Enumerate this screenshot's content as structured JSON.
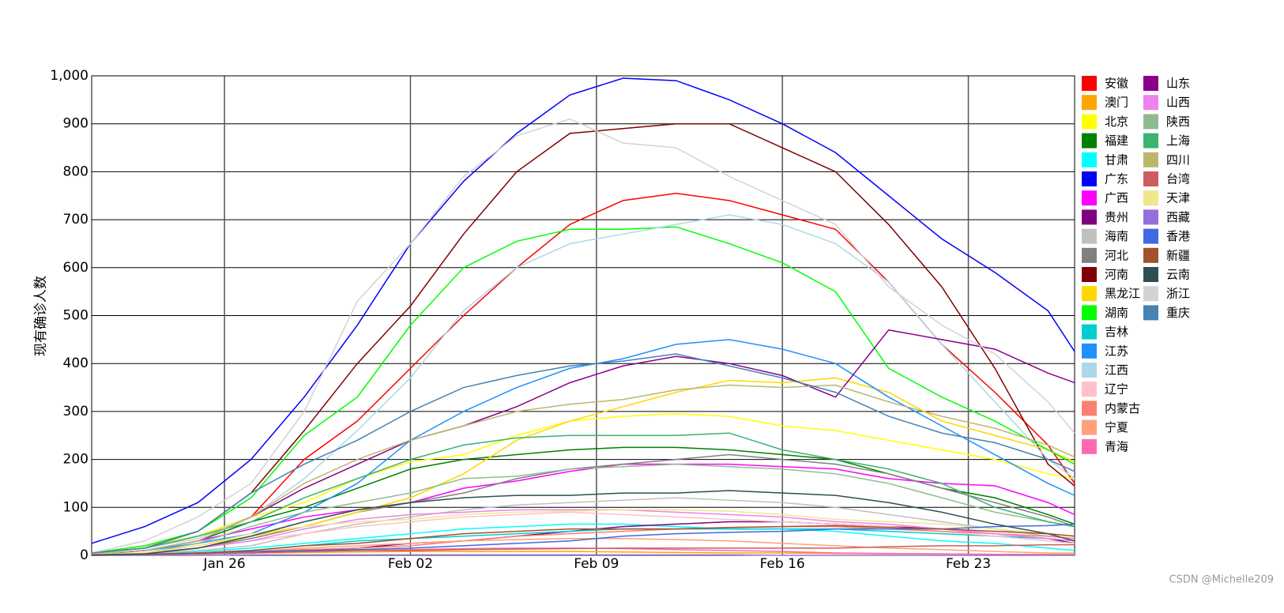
{
  "chart_data": {
    "type": "line",
    "ylabel": "现有确诊人数",
    "watermark": "CSDN @Michelle209",
    "x": [
      0,
      2,
      4,
      6,
      8,
      10,
      12,
      14,
      16,
      18,
      20,
      22,
      24,
      26,
      28,
      30,
      32,
      34,
      36,
      37
    ],
    "xlim": [
      0,
      37
    ],
    "xticks": [
      {
        "value": 5,
        "label": "Jan 26"
      },
      {
        "value": 12,
        "label": "Feb 02"
      },
      {
        "value": 19,
        "label": "Feb 09"
      },
      {
        "value": 26,
        "label": "Feb 16"
      },
      {
        "value": 33,
        "label": "Feb 23"
      }
    ],
    "ylim": [
      0,
      1000
    ],
    "yticks": [
      0,
      100,
      200,
      300,
      400,
      500,
      600,
      700,
      800,
      900,
      {
        "value": 1000,
        "label": "1,000"
      }
    ],
    "grid": true,
    "series": [
      {
        "name": "安徽",
        "color": "#ff0000",
        "values": [
          5,
          15,
          40,
          80,
          200,
          280,
          390,
          500,
          600,
          690,
          740,
          755,
          740,
          710,
          680,
          570,
          440,
          340,
          230,
          150
        ]
      },
      {
        "name": "澳门",
        "color": "#ffa500",
        "values": [
          1,
          2,
          4,
          5,
          6,
          7,
          8,
          8,
          8,
          8,
          7,
          6,
          5,
          5,
          4,
          3,
          3,
          2,
          2,
          2
        ]
      },
      {
        "name": "北京",
        "color": "#ffff00",
        "values": [
          5,
          20,
          40,
          80,
          110,
          160,
          195,
          210,
          250,
          280,
          290,
          295,
          290,
          270,
          260,
          240,
          220,
          200,
          170,
          160
        ]
      },
      {
        "name": "福建",
        "color": "#008000",
        "values": [
          2,
          10,
          30,
          70,
          100,
          140,
          180,
          200,
          210,
          220,
          225,
          225,
          220,
          210,
          200,
          170,
          140,
          120,
          85,
          65
        ]
      },
      {
        "name": "甘肃",
        "color": "#00ffff",
        "values": [
          0,
          2,
          8,
          15,
          25,
          35,
          45,
          55,
          60,
          65,
          65,
          60,
          55,
          55,
          50,
          40,
          30,
          25,
          15,
          10
        ]
      },
      {
        "name": "广东",
        "color": "#0000ff",
        "values": [
          25,
          60,
          110,
          200,
          330,
          480,
          650,
          780,
          880,
          960,
          995,
          990,
          950,
          900,
          840,
          750,
          660,
          590,
          510,
          425
        ]
      },
      {
        "name": "广西",
        "color": "#ff00ff",
        "values": [
          2,
          10,
          30,
          55,
          80,
          95,
          110,
          140,
          155,
          175,
          190,
          190,
          190,
          185,
          180,
          160,
          150,
          145,
          110,
          85
        ]
      },
      {
        "name": "贵州",
        "color": "#800080",
        "values": [
          0,
          1,
          3,
          5,
          10,
          15,
          25,
          30,
          40,
          50,
          60,
          65,
          70,
          70,
          65,
          60,
          55,
          45,
          35,
          25
        ]
      },
      {
        "name": "海南",
        "color": "#c0c0c0",
        "values": [
          1,
          4,
          10,
          20,
          45,
          65,
          80,
          95,
          105,
          110,
          115,
          120,
          115,
          110,
          100,
          85,
          70,
          55,
          40,
          35
        ]
      },
      {
        "name": "河北",
        "color": "#808080",
        "values": [
          1,
          5,
          15,
          35,
          60,
          90,
          110,
          130,
          160,
          180,
          190,
          200,
          210,
          200,
          190,
          170,
          140,
          110,
          80,
          60
        ]
      },
      {
        "name": "河南",
        "color": "#800000",
        "values": [
          5,
          15,
          50,
          130,
          260,
          400,
          520,
          670,
          800,
          880,
          890,
          900,
          900,
          850,
          800,
          690,
          560,
          390,
          190,
          145
        ]
      },
      {
        "name": "黑龙江",
        "color": "#ffd700",
        "values": [
          1,
          5,
          20,
          40,
          60,
          90,
          120,
          170,
          240,
          280,
          310,
          340,
          365,
          360,
          370,
          340,
          280,
          250,
          220,
          195
        ]
      },
      {
        "name": "湖南",
        "color": "#00ff00",
        "values": [
          5,
          20,
          50,
          120,
          250,
          330,
          480,
          600,
          655,
          680,
          680,
          685,
          650,
          610,
          550,
          390,
          330,
          280,
          220,
          190
        ]
      },
      {
        "name": "吉林",
        "color": "#00ced1",
        "values": [
          0,
          2,
          5,
          10,
          20,
          30,
          35,
          40,
          45,
          50,
          55,
          55,
          55,
          55,
          55,
          50,
          45,
          40,
          35,
          30
        ]
      },
      {
        "name": "江苏",
        "color": "#1e90ff",
        "values": [
          3,
          10,
          25,
          45,
          90,
          150,
          240,
          300,
          350,
          390,
          410,
          440,
          450,
          430,
          400,
          330,
          270,
          210,
          150,
          125
        ]
      },
      {
        "name": "江西",
        "color": "#add8e6",
        "values": [
          5,
          15,
          35,
          80,
          160,
          260,
          370,
          510,
          600,
          650,
          670,
          690,
          710,
          690,
          650,
          570,
          440,
          320,
          200,
          160
        ]
      },
      {
        "name": "辽宁",
        "color": "#ffc0cb",
        "values": [
          1,
          5,
          15,
          30,
          45,
          60,
          70,
          80,
          85,
          90,
          85,
          80,
          75,
          70,
          65,
          60,
          50,
          40,
          30,
          25
        ]
      },
      {
        "name": "内蒙古",
        "color": "#fa8072",
        "values": [
          0,
          1,
          4,
          8,
          12,
          15,
          20,
          30,
          40,
          45,
          50,
          55,
          58,
          60,
          60,
          55,
          50,
          45,
          40,
          35
        ]
      },
      {
        "name": "宁夏",
        "color": "#ffa07a",
        "values": [
          0,
          1,
          4,
          8,
          15,
          20,
          25,
          30,
          33,
          35,
          35,
          33,
          30,
          25,
          20,
          15,
          12,
          8,
          5,
          5
        ]
      },
      {
        "name": "青海",
        "color": "#ff69b4",
        "values": [
          0,
          1,
          3,
          5,
          8,
          10,
          12,
          14,
          15,
          15,
          14,
          12,
          10,
          8,
          5,
          4,
          3,
          2,
          1,
          1
        ]
      },
      {
        "name": "山东",
        "color": "#8b008b",
        "values": [
          2,
          10,
          30,
          80,
          140,
          190,
          240,
          270,
          310,
          360,
          395,
          415,
          400,
          375,
          330,
          470,
          450,
          430,
          380,
          360
        ]
      },
      {
        "name": "山西",
        "color": "#ee82ee",
        "values": [
          1,
          5,
          15,
          30,
          55,
          75,
          85,
          90,
          95,
          95,
          95,
          90,
          85,
          80,
          70,
          65,
          55,
          45,
          35,
          30
        ]
      },
      {
        "name": "陕西",
        "color": "#8fbc8f",
        "values": [
          1,
          5,
          25,
          60,
          90,
          110,
          130,
          160,
          165,
          180,
          185,
          190,
          185,
          180,
          170,
          150,
          120,
          90,
          70,
          60
        ]
      },
      {
        "name": "上海",
        "color": "#3cb371",
        "values": [
          5,
          15,
          40,
          70,
          120,
          160,
          200,
          230,
          245,
          250,
          250,
          250,
          255,
          220,
          200,
          180,
          150,
          100,
          70,
          60
        ]
      },
      {
        "name": "四川",
        "color": "#bdb76b",
        "values": [
          3,
          10,
          30,
          80,
          150,
          200,
          240,
          270,
          300,
          315,
          325,
          345,
          355,
          350,
          355,
          320,
          290,
          265,
          230,
          205
        ]
      },
      {
        "name": "台湾",
        "color": "#cd5c5c",
        "values": [
          1,
          2,
          3,
          5,
          8,
          10,
          10,
          12,
          13,
          14,
          15,
          15,
          15,
          15,
          15,
          18,
          20,
          20,
          22,
          22
        ]
      },
      {
        "name": "天津",
        "color": "#f0e68c",
        "values": [
          2,
          5,
          20,
          45,
          60,
          70,
          75,
          85,
          90,
          92,
          95,
          95,
          92,
          85,
          75,
          70,
          65,
          55,
          45,
          40
        ]
      },
      {
        "name": "西藏",
        "color": "#9370db",
        "values": [
          0,
          0,
          0,
          1,
          1,
          1,
          1,
          1,
          1,
          1,
          1,
          1,
          1,
          0,
          0,
          0,
          0,
          0,
          0,
          0
        ]
      },
      {
        "name": "香港",
        "color": "#4169e1",
        "values": [
          1,
          2,
          5,
          8,
          10,
          12,
          15,
          20,
          25,
          30,
          40,
          45,
          48,
          50,
          55,
          55,
          55,
          60,
          62,
          65
        ]
      },
      {
        "name": "新疆",
        "color": "#a0522d",
        "values": [
          0,
          2,
          5,
          10,
          20,
          25,
          35,
          45,
          50,
          55,
          55,
          55,
          58,
          60,
          62,
          58,
          55,
          50,
          45,
          40
        ]
      },
      {
        "name": "云南",
        "color": "#2f4f4f",
        "values": [
          1,
          3,
          15,
          40,
          70,
          95,
          110,
          120,
          125,
          125,
          130,
          130,
          135,
          130,
          125,
          110,
          90,
          65,
          45,
          30
        ]
      },
      {
        "name": "浙江",
        "color": "#d3d3d3",
        "values": [
          5,
          30,
          80,
          150,
          300,
          530,
          650,
          790,
          875,
          910,
          860,
          850,
          790,
          740,
          690,
          560,
          480,
          420,
          320,
          255
        ]
      },
      {
        "name": "重庆",
        "color": "#4682b4",
        "values": [
          5,
          15,
          50,
          130,
          190,
          240,
          300,
          350,
          375,
          395,
          405,
          420,
          395,
          370,
          340,
          290,
          255,
          235,
          200,
          175
        ]
      }
    ]
  }
}
